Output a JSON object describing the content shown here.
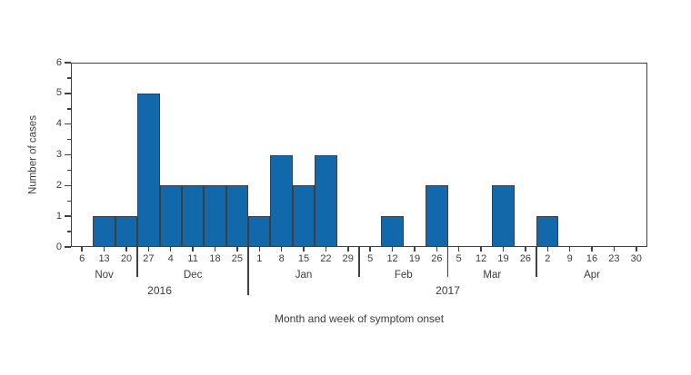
{
  "chart_data": {
    "type": "bar",
    "title": "",
    "xlabel": "Month and week of symptom onset",
    "ylabel": "Number of cases",
    "ylim": [
      0,
      6
    ],
    "y_major_ticks": [
      "0",
      "1",
      "2",
      "3",
      "4",
      "5",
      "6"
    ],
    "y_minor_tick_values": [
      0.5,
      1.5,
      2.5,
      3.5,
      4.5,
      5.5
    ],
    "grid": false,
    "legend": "none",
    "bar_color": "#1169ac",
    "bar_border_color": "#3e3f44",
    "axis_color": "#3f4042",
    "text_color": "#3b3b3d",
    "categories": [
      "6",
      "13",
      "20",
      "27",
      "4",
      "11",
      "18",
      "25",
      "1",
      "8",
      "15",
      "22",
      "29",
      "5",
      "12",
      "19",
      "26",
      "5",
      "12",
      "19",
      "26",
      "2",
      "9",
      "16",
      "23",
      "30"
    ],
    "values": [
      0,
      1,
      1,
      5,
      2,
      2,
      2,
      2,
      1,
      3,
      2,
      3,
      0,
      0,
      1,
      0,
      2,
      0,
      0,
      2,
      0,
      1,
      0,
      0,
      0,
      0
    ],
    "month_groups": [
      {
        "label": "Nov",
        "start": 0,
        "count": 3
      },
      {
        "label": "Dec",
        "start": 3,
        "count": 5
      },
      {
        "label": "Jan",
        "start": 8,
        "count": 5
      },
      {
        "label": "Feb",
        "start": 13,
        "count": 4
      },
      {
        "label": "Mar",
        "start": 17,
        "count": 4
      },
      {
        "label": "Apr",
        "start": 21,
        "count": 5
      }
    ],
    "year_groups": [
      {
        "label": "2016",
        "start": 0,
        "count": 8
      },
      {
        "label": "2017",
        "start": 8,
        "count": 18
      }
    ]
  }
}
